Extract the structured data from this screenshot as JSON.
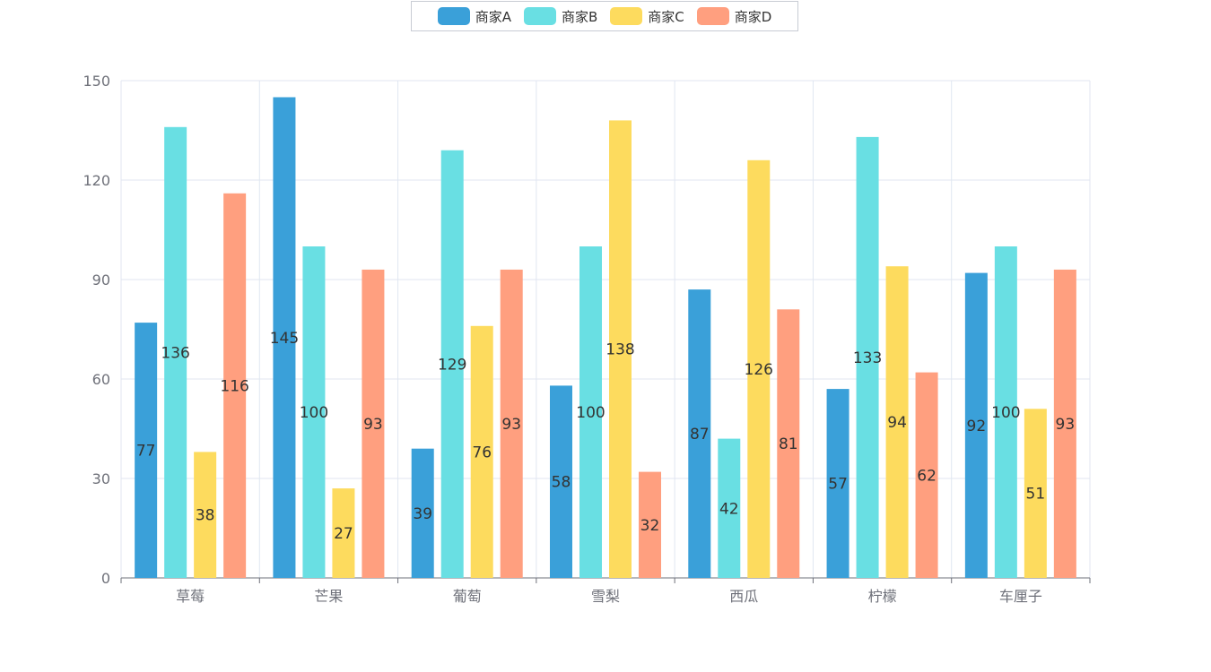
{
  "chart_data": {
    "type": "bar",
    "categories": [
      "草莓",
      "芒果",
      "葡萄",
      "雪梨",
      "西瓜",
      "柠檬",
      "车厘子"
    ],
    "series": [
      {
        "name": "商家A",
        "color": "#3aa0d9",
        "values": [
          77,
          145,
          39,
          58,
          87,
          57,
          92
        ]
      },
      {
        "name": "商家B",
        "color": "#69dfe3",
        "values": [
          136,
          100,
          129,
          100,
          42,
          133,
          100
        ]
      },
      {
        "name": "商家C",
        "color": "#fddb5e",
        "values": [
          38,
          27,
          76,
          138,
          126,
          94,
          51
        ]
      },
      {
        "name": "商家D",
        "color": "#ff9f7f",
        "values": [
          116,
          93,
          93,
          32,
          81,
          62,
          93
        ]
      }
    ],
    "ylim": [
      0,
      150
    ],
    "yticks": [
      0,
      30,
      60,
      90,
      120,
      150
    ],
    "grid": true,
    "legend_position": "top-center",
    "data_labels": "inside-middle"
  }
}
